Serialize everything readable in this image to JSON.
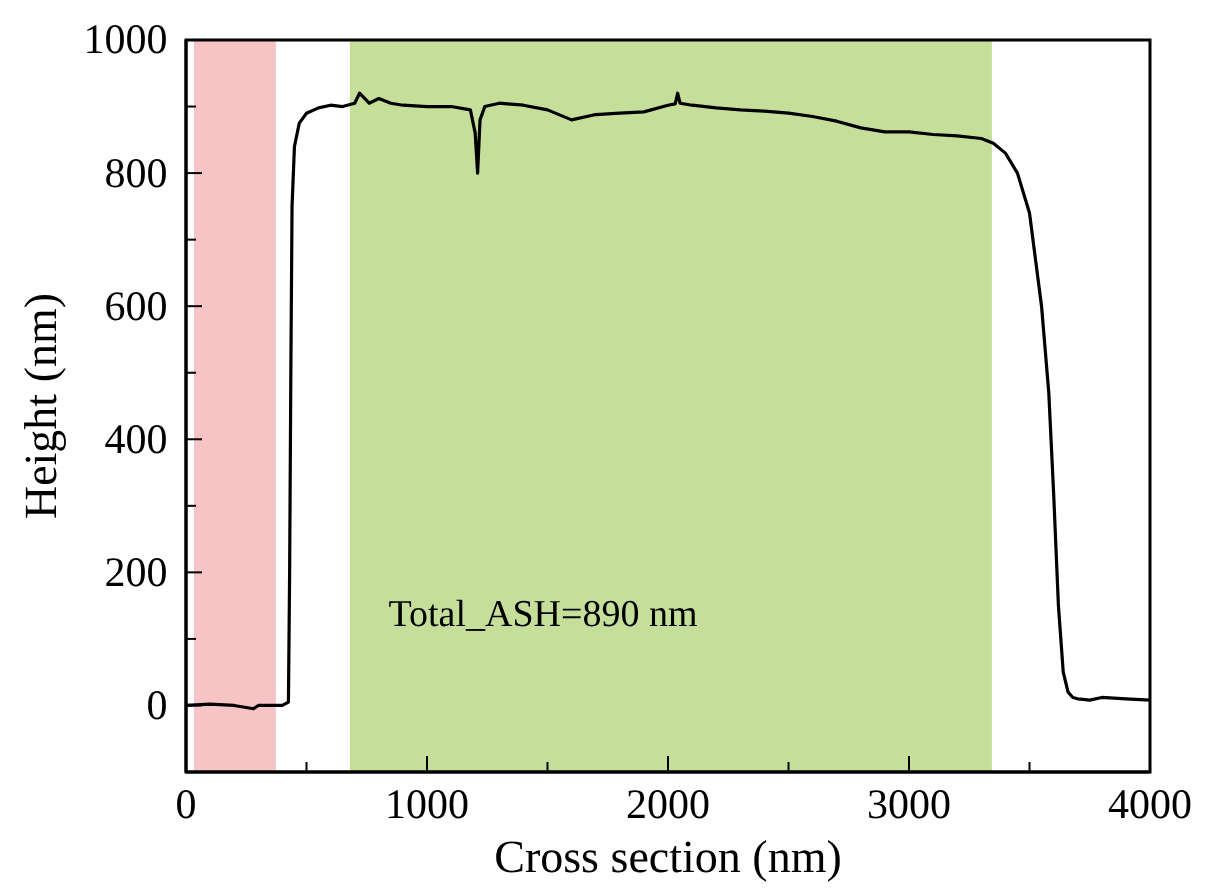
{
  "chart_data": {
    "type": "line",
    "xlabel": "Cross section (nm)",
    "ylabel": "Height (nm)",
    "xlim": [
      0,
      4000
    ],
    "ylim": [
      -100,
      1000
    ],
    "xticks": [
      0,
      {
        "value": 500,
        "label": null
      },
      1000,
      {
        "value": 1500,
        "label": null
      },
      2000,
      {
        "value": 2500,
        "label": null
      },
      3000,
      {
        "value": 3500,
        "label": null
      },
      4000
    ],
    "yticks": [
      {
        "value": -100,
        "label": null
      },
      0,
      {
        "value": 100,
        "label": null
      },
      200,
      {
        "value": 300,
        "label": null
      },
      400,
      {
        "value": 500,
        "label": null
      },
      600,
      {
        "value": 700,
        "label": null
      },
      800,
      {
        "value": 900,
        "label": null
      },
      1000
    ],
    "grid": false,
    "marker": "none",
    "line_style": "solid",
    "bands": [
      {
        "axis": "x",
        "from": 33,
        "to": 373,
        "color": "#f7c4c6"
      },
      {
        "axis": "x",
        "from": 680,
        "to": 3344,
        "color": "#c5df9a"
      }
    ],
    "annotations": [
      "Total_ASH=890 nm"
    ],
    "series": [
      {
        "color": "#000000",
        "x": [
          0,
          100,
          200,
          280,
          300,
          400,
          425,
          430,
          435,
          440,
          450,
          470,
          500,
          550,
          600,
          650,
          700,
          720,
          760,
          800,
          850,
          900,
          1000,
          1100,
          1180,
          1200,
          1210,
          1220,
          1240,
          1300,
          1400,
          1500,
          1600,
          1700,
          1800,
          1900,
          2000,
          2030,
          2040,
          2050,
          2100,
          2200,
          2300,
          2400,
          2500,
          2600,
          2700,
          2800,
          2900,
          3000,
          3100,
          3200,
          3300,
          3350,
          3400,
          3450,
          3500,
          3550,
          3580,
          3600,
          3620,
          3640,
          3660,
          3680,
          3700,
          3750,
          3800,
          3900,
          4000
        ],
        "values": [
          0,
          2,
          0,
          -5,
          0,
          0,
          5,
          200,
          500,
          750,
          840,
          875,
          890,
          898,
          902,
          900,
          905,
          920,
          905,
          912,
          905,
          902,
          900,
          900,
          895,
          860,
          800,
          880,
          900,
          905,
          902,
          895,
          880,
          888,
          890,
          892,
          902,
          904,
          920,
          905,
          902,
          898,
          895,
          893,
          890,
          885,
          878,
          868,
          862,
          862,
          858,
          856,
          852,
          845,
          830,
          800,
          740,
          600,
          470,
          320,
          150,
          50,
          20,
          12,
          10,
          8,
          12,
          10,
          8
        ]
      }
    ]
  }
}
